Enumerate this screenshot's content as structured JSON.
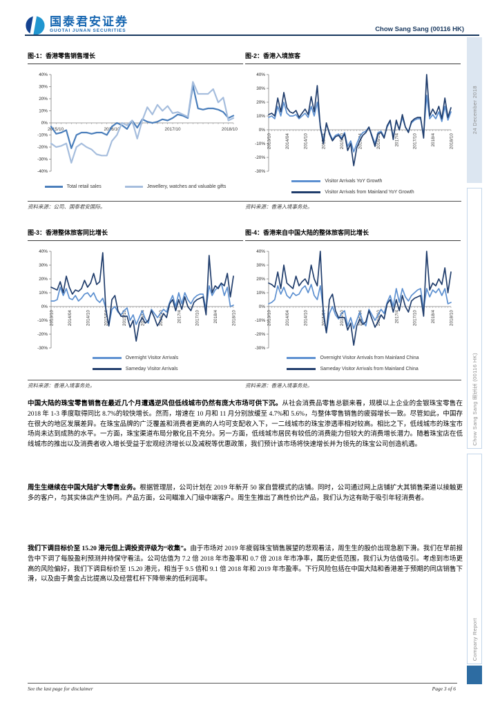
{
  "header": {
    "brand_cn": "国泰君安证券",
    "brand_en": "GUOTAI JUNAN SECURITIES",
    "doc_title": "Chow Sang Sang (00116 HK)",
    "brand_color": "#1565b0",
    "rule_color": "#17375e"
  },
  "sidebar": {
    "date": "24 December 2018",
    "stock": "Chow Sang Sang 周生生 (00116 HK)",
    "report_type": "Company Report",
    "bar_fill": "#dce6f1",
    "square_color": "#2d6ca2"
  },
  "footer": {
    "left": "See the last page for disclaimer",
    "right": "Page 3 of 6"
  },
  "paragraphs": [
    {
      "lead": "中国大陆的珠宝零售销售在最近几个月遭遇逆风但低线城市仍然有庞大市场可供下沉。",
      "body": "从社会消费品零售总额来看，规模以上企业的金银珠宝零售在 2018 年 1-3 季度取得同比 8.7%的较快增长。然而，增速在 10 月和 11 月分别放缓至 4.7%和 5.6%，与整体零售销售的疲弱增长一致。尽管如此，中国存在很大的地区发展差异。在珠宝品牌的广泛覆盖和消费者更高的人均可支配收入下，一二线城市的珠宝渗透率相对较高。相比之下，低线城市的珠宝市场尚未达到成熟的水平。一方面，珠宝渠道布局分散化且不充分。另一方面，低线城市居民有较低的消费能力但较大的消费增长潜力。随着珠宝店在低线城市的推出以及消费者收入增长受益于宏观经济增长以及减税等优惠政策，我们预计该市场将快速增长并为领先的珠宝公司创造机遇。"
    },
    {
      "lead": "周生生继续在中国大陆扩大零售业务。",
      "body": "根据管理层，公司计划在 2019 年新开 50 家自营模式的店铺。同时，公司通过网上店铺扩大其销售渠道以接触更多的客户，与其实体店产生协同。产品方面，公司瞄准入门级中端客户。周生生推出了高性价比产品，我们认为这有助于吸引年轻消费者。"
    },
    {
      "lead": "我们下调目标价至 15.20 港元但上调投资评级为“收集”。",
      "body": "由于市场对 2019 年疲弱珠宝销售展望的悲观看法，周生生的股价出现急剧下滑。我们在早前报告中下调了每股盈利预测并持保守看法。公司估值为 7.2 倍 2018 年市盈率和 0.7 倍 2018 年市净率，属历史低范围，我们认为估值吸引。考虑到市场更高的风险偏好，我们下调目标价至 15.20 港元，相当于 9.5 倍和 9.1 倍 2018 年和 2019 年市盈率。下行风险包括在中国大陆和香港差于预期的同店销售下滑，以及由于黄金占比提高以及经营杠杆下降带来的低利润率。"
    }
  ],
  "chart_data": [
    {
      "type": "line",
      "title": "图-1：香港零售销售增长",
      "source": "资料来源：公司、国泰君安国际。",
      "x_unit": "month",
      "x_range": "2015/10 - 2018/10",
      "x_tick_labels": [
        "2015/10",
        "2016/10",
        "2017/10",
        "2018/10"
      ],
      "x_tick_positions": [
        0,
        12,
        24,
        36
      ],
      "ylim": [
        -40,
        40
      ],
      "y_step": 10,
      "rotated_x_labels": false,
      "legend_layout": "row",
      "series": [
        {
          "name": "Total retail sales",
          "color": "#4a7ebb",
          "width": 2.2,
          "values": [
            -3,
            -9,
            -8,
            -6,
            -21,
            -10,
            -8,
            -8,
            -9,
            -8,
            -8,
            -10,
            -3,
            0,
            -2,
            -5,
            2,
            -4,
            3,
            1,
            0,
            1,
            3,
            2,
            4,
            7,
            6,
            4,
            31,
            12,
            11,
            12,
            12,
            11,
            9,
            4,
            6
          ]
        },
        {
          "name": "Jewellery, watches and valuable gifts",
          "color": "#a5bddd",
          "width": 2.2,
          "values": [
            -17,
            -20,
            -19,
            -17,
            -33,
            -20,
            -17,
            -20,
            -22,
            -26,
            -27,
            -27,
            -15,
            -10,
            0,
            -2,
            2,
            -13,
            2,
            13,
            7,
            15,
            10,
            14,
            8,
            9,
            7,
            5,
            34,
            24,
            24,
            24,
            28,
            17,
            21,
            2,
            4
          ]
        }
      ]
    },
    {
      "type": "line",
      "title": "图-2：香港入境旅客",
      "source": "资料来源：香港入境事务处。",
      "x_unit": "month",
      "x_range": "2013/10 - 2018/10",
      "x_tick_labels": [
        "2013/10",
        "2014/04",
        "2014/10",
        "2015/04",
        "2015/10",
        "2016/04",
        "2016/10",
        "2017/4",
        "2017/10",
        "2018/4",
        "2018/10"
      ],
      "x_tick_positions": [
        0,
        6,
        12,
        18,
        24,
        30,
        36,
        42,
        48,
        54,
        60
      ],
      "ylim": [
        -30,
        40
      ],
      "y_step": 10,
      "rotated_x_labels": true,
      "legend_layout": "col",
      "series": [
        {
          "name": "Visitor Arrivals YoY Growth",
          "color": "#5b8fd0",
          "width": 1.7,
          "values": [
            9,
            10,
            8,
            17,
            10,
            20,
            12,
            10,
            10,
            11,
            8,
            10,
            12,
            9,
            17,
            10,
            20,
            3,
            -8,
            4,
            -2,
            -7,
            -4,
            -3,
            -6,
            -2,
            -12,
            -8,
            -16,
            -10,
            -5,
            -2,
            -1,
            2,
            -4,
            -10,
            -2,
            -1,
            -5,
            2,
            6,
            -5,
            6,
            0,
            9,
            2,
            -1,
            5,
            7,
            8,
            8,
            -4,
            25,
            8,
            11,
            8,
            13,
            6,
            17,
            7,
            13
          ]
        },
        {
          "name": "Visitor Arrivals from Mainland YoY Growth",
          "color": "#1f3c6b",
          "width": 1.7,
          "values": [
            11,
            12,
            10,
            23,
            13,
            27,
            16,
            13,
            12,
            14,
            9,
            12,
            15,
            11,
            24,
            13,
            32,
            2,
            -10,
            5,
            -3,
            -8,
            -5,
            -4,
            -7,
            -3,
            -15,
            -10,
            -26,
            -13,
            -8,
            -4,
            -2,
            2,
            -5,
            -12,
            -3,
            -2,
            -6,
            3,
            7,
            -7,
            7,
            0,
            11,
            2,
            -2,
            6,
            8,
            9,
            9,
            -6,
            40,
            10,
            15,
            11,
            17,
            8,
            23,
            9,
            16
          ]
        }
      ]
    },
    {
      "type": "line",
      "title": "图-3：香港整体旅客同比增长",
      "source": "资料来源：香港入境事务处。",
      "x_unit": "month",
      "x_range": "2013/10 - 2018/10",
      "x_tick_labels": [
        "2013/10",
        "2014/04",
        "2014/10",
        "2015/04",
        "2015/10",
        "2016/04",
        "2016/10",
        "2017/4",
        "2017/10",
        "2018/4",
        "2018/10"
      ],
      "x_tick_positions": [
        0,
        6,
        12,
        18,
        24,
        30,
        36,
        42,
        48,
        54,
        60
      ],
      "ylim": [
        -30,
        40
      ],
      "y_step": 10,
      "rotated_x_labels": true,
      "legend_layout": "col",
      "series": [
        {
          "name": "Overnight Visitor Arrivals",
          "color": "#5b8fd0",
          "width": 1.7,
          "values": [
            4,
            4,
            5,
            14,
            8,
            13,
            6,
            5,
            8,
            4,
            6,
            9,
            10,
            7,
            10,
            5,
            3,
            6,
            -1,
            -14,
            -2,
            0,
            -4,
            -6,
            -3,
            -1,
            -10,
            -6,
            -13,
            -8,
            -3,
            -9,
            -12,
            -2,
            -5,
            -8,
            -5,
            -2,
            -4,
            3,
            8,
            0,
            10,
            2,
            10,
            5,
            2,
            6,
            8,
            9,
            9,
            -2,
            15,
            8,
            12,
            14,
            17,
            8,
            14,
            0,
            1
          ]
        },
        {
          "name": "Sameday Visitor Arrivals",
          "color": "#1f3c6b",
          "width": 1.7,
          "values": [
            14,
            13,
            12,
            18,
            10,
            22,
            14,
            9,
            12,
            11,
            13,
            19,
            14,
            17,
            24,
            16,
            18,
            39,
            -2,
            -14,
            5,
            8,
            -3,
            -7,
            -7,
            -7,
            -15,
            -10,
            -25,
            -12,
            -8,
            -12,
            -10,
            -3,
            -8,
            -14,
            -10,
            -5,
            -8,
            2,
            5,
            -3,
            5,
            -2,
            7,
            0,
            -3,
            3,
            5,
            6,
            7,
            -6,
            37,
            10,
            15,
            13,
            17,
            15,
            24,
            7,
            22
          ]
        }
      ]
    },
    {
      "type": "line",
      "title": "图-4：香港来自中国大陆的整体旅客同比增长",
      "source": "资料来源：香港入境事务处。",
      "x_unit": "month",
      "x_range": "2013/10 - 2018/10",
      "x_tick_labels": [
        "2013/10",
        "2014/04",
        "2014/10",
        "2015/04",
        "2015/10",
        "2016/04",
        "2016/10",
        "2017/4",
        "2017/10",
        "2018/4",
        "2018/10"
      ],
      "x_tick_positions": [
        0,
        6,
        12,
        18,
        24,
        30,
        36,
        42,
        48,
        54,
        60
      ],
      "ylim": [
        -30,
        40
      ],
      "y_step": 10,
      "rotated_x_labels": true,
      "legend_layout": "col",
      "series": [
        {
          "name": "Overnight Visitor Arrivals from Mainland China",
          "color": "#5b8fd0",
          "width": 1.7,
          "values": [
            2,
            3,
            5,
            15,
            9,
            14,
            8,
            6,
            10,
            8,
            9,
            13,
            15,
            10,
            16,
            8,
            5,
            15,
            -2,
            -19,
            -5,
            0,
            -6,
            -9,
            -5,
            -3,
            -14,
            -8,
            -16,
            -10,
            -4,
            -11,
            -14,
            -2,
            -6,
            -10,
            -6,
            -2,
            -5,
            3,
            8,
            0,
            13,
            3,
            13,
            7,
            4,
            8,
            10,
            12,
            13,
            -2,
            13,
            7,
            12,
            10,
            13,
            8,
            13,
            2,
            3
          ]
        },
        {
          "name": "Sameday Visitor Arrivals from Mainland China",
          "color": "#1f3c6b",
          "width": 1.7,
          "values": [
            17,
            16,
            14,
            25,
            13,
            30,
            17,
            15,
            13,
            22,
            15,
            18,
            20,
            16,
            30,
            20,
            15,
            40,
            -5,
            -19,
            5,
            9,
            -3,
            -8,
            -8,
            -8,
            -17,
            -12,
            -28,
            -14,
            -9,
            -13,
            -11,
            -3,
            -9,
            -15,
            -11,
            -6,
            -9,
            2,
            5,
            -4,
            5,
            -3,
            8,
            0,
            -4,
            4,
            6,
            7,
            8,
            -7,
            40,
            12,
            17,
            15,
            20,
            16,
            28,
            10,
            25
          ]
        }
      ]
    }
  ]
}
